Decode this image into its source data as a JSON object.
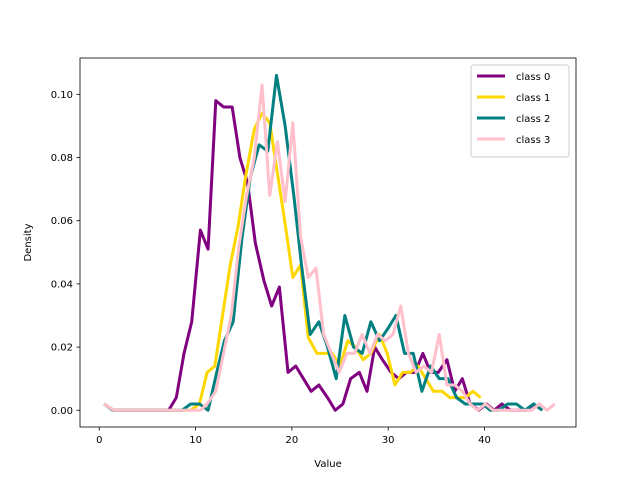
{
  "chart_data": {
    "type": "line",
    "title": "",
    "xlabel": "Value",
    "ylabel": "Density",
    "xlim": [
      -2.0,
      49.5
    ],
    "ylim": [
      -0.0053,
      0.1115
    ],
    "xticks": [
      0,
      10,
      20,
      30,
      40
    ],
    "yticks": [
      0.0,
      0.02,
      0.04,
      0.06,
      0.08,
      0.1
    ],
    "ytick_labels": [
      "0.00",
      "0.02",
      "0.04",
      "0.06",
      "0.08",
      "0.10"
    ],
    "grid": false,
    "legend": "top-right",
    "series": [
      {
        "name": "class 0",
        "color": "#800080",
        "points": [
          [
            0.5,
            0.002
          ],
          [
            1.5,
            0.0
          ],
          [
            2.5,
            0.0
          ],
          [
            3.5,
            0.0
          ],
          [
            4.5,
            0.0
          ],
          [
            5.5,
            0.0
          ],
          [
            6.5,
            0.0
          ],
          [
            7.2,
            0.0
          ],
          [
            8.0,
            0.004
          ],
          [
            8.8,
            0.018
          ],
          [
            9.6,
            0.028
          ],
          [
            10.5,
            0.057
          ],
          [
            11.3,
            0.051
          ],
          [
            12.1,
            0.098
          ],
          [
            12.9,
            0.096
          ],
          [
            13.8,
            0.096
          ],
          [
            14.6,
            0.08
          ],
          [
            15.4,
            0.072
          ],
          [
            16.2,
            0.053
          ],
          [
            17.1,
            0.041
          ],
          [
            17.9,
            0.033
          ],
          [
            18.7,
            0.039
          ],
          [
            19.6,
            0.012
          ],
          [
            20.4,
            0.014
          ],
          [
            21.2,
            0.01
          ],
          [
            22.0,
            0.006
          ],
          [
            22.8,
            0.008
          ],
          [
            23.7,
            0.004
          ],
          [
            24.5,
            0.0
          ],
          [
            25.3,
            0.002
          ],
          [
            26.1,
            0.01
          ],
          [
            27.0,
            0.012
          ],
          [
            27.8,
            0.006
          ],
          [
            28.6,
            0.02
          ],
          [
            29.4,
            0.016
          ],
          [
            30.3,
            0.012
          ],
          [
            31.1,
            0.01
          ],
          [
            31.9,
            0.012
          ],
          [
            32.8,
            0.012
          ],
          [
            33.6,
            0.018
          ],
          [
            34.4,
            0.012
          ],
          [
            35.2,
            0.012
          ],
          [
            36.1,
            0.016
          ],
          [
            36.9,
            0.006
          ],
          [
            37.7,
            0.01
          ],
          [
            38.5,
            0.002
          ],
          [
            39.4,
            0.0
          ],
          [
            40.2,
            0.002
          ],
          [
            41.0,
            0.0
          ],
          [
            41.8,
            0.002
          ],
          [
            42.7,
            0.0
          ],
          [
            43.5,
            0.0
          ],
          [
            44.3,
            0.0
          ],
          [
            45.2,
            0.002
          ]
        ]
      },
      {
        "name": "class 1",
        "color": "#ffd700",
        "points": [
          [
            0.5,
            0.002
          ],
          [
            1.5,
            0.0
          ],
          [
            2.5,
            0.0
          ],
          [
            3.5,
            0.0
          ],
          [
            4.5,
            0.0
          ],
          [
            5.5,
            0.0
          ],
          [
            6.5,
            0.0
          ],
          [
            7.5,
            0.0
          ],
          [
            8.5,
            0.0
          ],
          [
            9.5,
            0.0
          ],
          [
            10.4,
            0.002
          ],
          [
            11.2,
            0.012
          ],
          [
            12.0,
            0.014
          ],
          [
            12.8,
            0.03
          ],
          [
            13.6,
            0.046
          ],
          [
            14.4,
            0.058
          ],
          [
            15.2,
            0.074
          ],
          [
            16.1,
            0.089
          ],
          [
            16.9,
            0.094
          ],
          [
            17.7,
            0.091
          ],
          [
            18.5,
            0.075
          ],
          [
            19.3,
            0.059
          ],
          [
            20.1,
            0.042
          ],
          [
            20.9,
            0.046
          ],
          [
            21.7,
            0.023
          ],
          [
            22.6,
            0.018
          ],
          [
            23.4,
            0.018
          ],
          [
            24.2,
            0.018
          ],
          [
            25.0,
            0.014
          ],
          [
            25.8,
            0.022
          ],
          [
            26.6,
            0.02
          ],
          [
            27.4,
            0.016
          ],
          [
            28.2,
            0.018
          ],
          [
            29.1,
            0.024
          ],
          [
            29.9,
            0.018
          ],
          [
            30.7,
            0.008
          ],
          [
            31.5,
            0.012
          ],
          [
            32.3,
            0.012
          ],
          [
            33.1,
            0.014
          ],
          [
            33.9,
            0.01
          ],
          [
            34.7,
            0.006
          ],
          [
            35.6,
            0.006
          ],
          [
            36.4,
            0.004
          ],
          [
            37.2,
            0.004
          ],
          [
            38.0,
            0.004
          ],
          [
            38.8,
            0.006
          ],
          [
            39.6,
            0.004
          ]
        ]
      },
      {
        "name": "class 2",
        "color": "#008080",
        "points": [
          [
            0.5,
            0.002
          ],
          [
            1.4,
            0.0
          ],
          [
            2.3,
            0.0
          ],
          [
            3.2,
            0.0
          ],
          [
            4.1,
            0.0
          ],
          [
            5.0,
            0.0
          ],
          [
            5.9,
            0.0
          ],
          [
            6.8,
            0.0
          ],
          [
            7.7,
            0.0
          ],
          [
            8.6,
            0.0
          ],
          [
            9.5,
            0.002
          ],
          [
            10.4,
            0.002
          ],
          [
            11.3,
            0.0
          ],
          [
            12.2,
            0.012
          ],
          [
            13.0,
            0.022
          ],
          [
            13.9,
            0.028
          ],
          [
            14.8,
            0.054
          ],
          [
            15.7,
            0.074
          ],
          [
            16.6,
            0.084
          ],
          [
            17.5,
            0.082
          ],
          [
            18.4,
            0.106
          ],
          [
            19.3,
            0.09
          ],
          [
            20.2,
            0.068
          ],
          [
            21.0,
            0.046
          ],
          [
            21.9,
            0.024
          ],
          [
            22.8,
            0.028
          ],
          [
            23.7,
            0.02
          ],
          [
            24.6,
            0.01
          ],
          [
            25.5,
            0.03
          ],
          [
            26.4,
            0.02
          ],
          [
            27.3,
            0.018
          ],
          [
            28.2,
            0.028
          ],
          [
            29.1,
            0.022
          ],
          [
            30.0,
            0.026
          ],
          [
            30.8,
            0.03
          ],
          [
            31.7,
            0.018
          ],
          [
            32.6,
            0.018
          ],
          [
            33.5,
            0.006
          ],
          [
            34.4,
            0.014
          ],
          [
            35.3,
            0.01
          ],
          [
            36.2,
            0.01
          ],
          [
            37.1,
            0.004
          ],
          [
            38.0,
            0.002
          ],
          [
            38.9,
            0.002
          ],
          [
            39.8,
            0.002
          ],
          [
            40.6,
            0.0
          ],
          [
            41.5,
            0.0
          ],
          [
            42.4,
            0.002
          ],
          [
            43.3,
            0.002
          ],
          [
            44.2,
            0.0
          ],
          [
            45.1,
            0.002
          ],
          [
            46.0,
            0.0
          ]
        ]
      },
      {
        "name": "class 3",
        "color": "#ffc0cb",
        "points": [
          [
            0.5,
            0.002
          ],
          [
            1.5,
            0.0
          ],
          [
            2.5,
            0.0
          ],
          [
            3.5,
            0.0
          ],
          [
            4.5,
            0.0
          ],
          [
            5.5,
            0.0
          ],
          [
            6.5,
            0.0
          ],
          [
            7.5,
            0.0
          ],
          [
            8.5,
            0.0
          ],
          [
            9.5,
            0.0
          ],
          [
            10.5,
            0.0
          ],
          [
            11.2,
            0.002
          ],
          [
            12.1,
            0.006
          ],
          [
            12.9,
            0.018
          ],
          [
            13.7,
            0.03
          ],
          [
            14.5,
            0.052
          ],
          [
            15.3,
            0.068
          ],
          [
            16.1,
            0.08
          ],
          [
            16.9,
            0.103
          ],
          [
            17.7,
            0.068
          ],
          [
            18.5,
            0.085
          ],
          [
            19.3,
            0.066
          ],
          [
            20.1,
            0.091
          ],
          [
            20.9,
            0.055
          ],
          [
            21.7,
            0.042
          ],
          [
            22.5,
            0.045
          ],
          [
            23.3,
            0.024
          ],
          [
            24.1,
            0.018
          ],
          [
            24.9,
            0.012
          ],
          [
            25.7,
            0.018
          ],
          [
            26.5,
            0.018
          ],
          [
            27.3,
            0.024
          ],
          [
            28.1,
            0.018
          ],
          [
            28.9,
            0.024
          ],
          [
            29.7,
            0.022
          ],
          [
            30.5,
            0.024
          ],
          [
            31.3,
            0.033
          ],
          [
            32.1,
            0.018
          ],
          [
            32.9,
            0.012
          ],
          [
            33.7,
            0.014
          ],
          [
            34.5,
            0.012
          ],
          [
            35.3,
            0.024
          ],
          [
            36.1,
            0.008
          ],
          [
            36.9,
            0.008
          ],
          [
            37.7,
            0.006
          ],
          [
            38.5,
            0.002
          ],
          [
            39.3,
            0.0
          ],
          [
            40.1,
            0.002
          ],
          [
            40.9,
            0.0
          ],
          [
            41.7,
            0.0
          ],
          [
            42.5,
            0.0
          ],
          [
            43.3,
            0.0
          ],
          [
            44.1,
            0.0
          ],
          [
            44.9,
            0.0
          ],
          [
            45.7,
            0.002
          ],
          [
            46.5,
            0.0
          ],
          [
            47.3,
            0.002
          ]
        ]
      }
    ]
  }
}
